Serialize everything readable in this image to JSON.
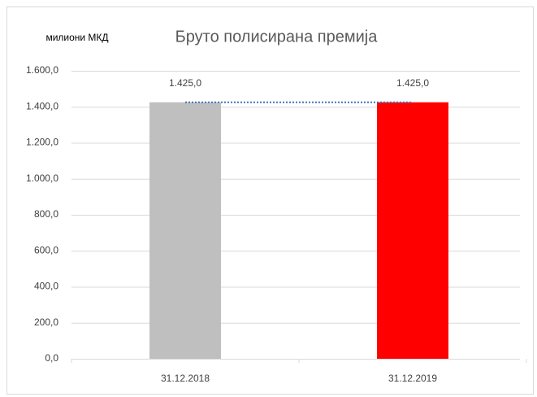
{
  "chart_data": {
    "type": "bar",
    "title": "Бруто полисирана  премија",
    "y_label": "милиони МКД",
    "categories": [
      "31.12.2018",
      "31.12.2019"
    ],
    "values": [
      1425,
      1425
    ],
    "value_labels": [
      "1.425,0",
      "1.425,0"
    ],
    "colors": [
      "#bfbfbf",
      "#ff0000"
    ],
    "ylim": [
      0,
      1600
    ],
    "yticks": [
      {
        "value": 0,
        "label": "0,0"
      },
      {
        "value": 200,
        "label": "200,0"
      },
      {
        "value": 400,
        "label": "400,0"
      },
      {
        "value": 600,
        "label": "600,0"
      },
      {
        "value": 800,
        "label": "800,0"
      },
      {
        "value": 1000,
        "label": "1.000,0"
      },
      {
        "value": 1200,
        "label": "1.200,0"
      },
      {
        "value": 1400,
        "label": "1.400,0"
      },
      {
        "value": 1600,
        "label": "1.600,0"
      }
    ],
    "grid": true
  }
}
